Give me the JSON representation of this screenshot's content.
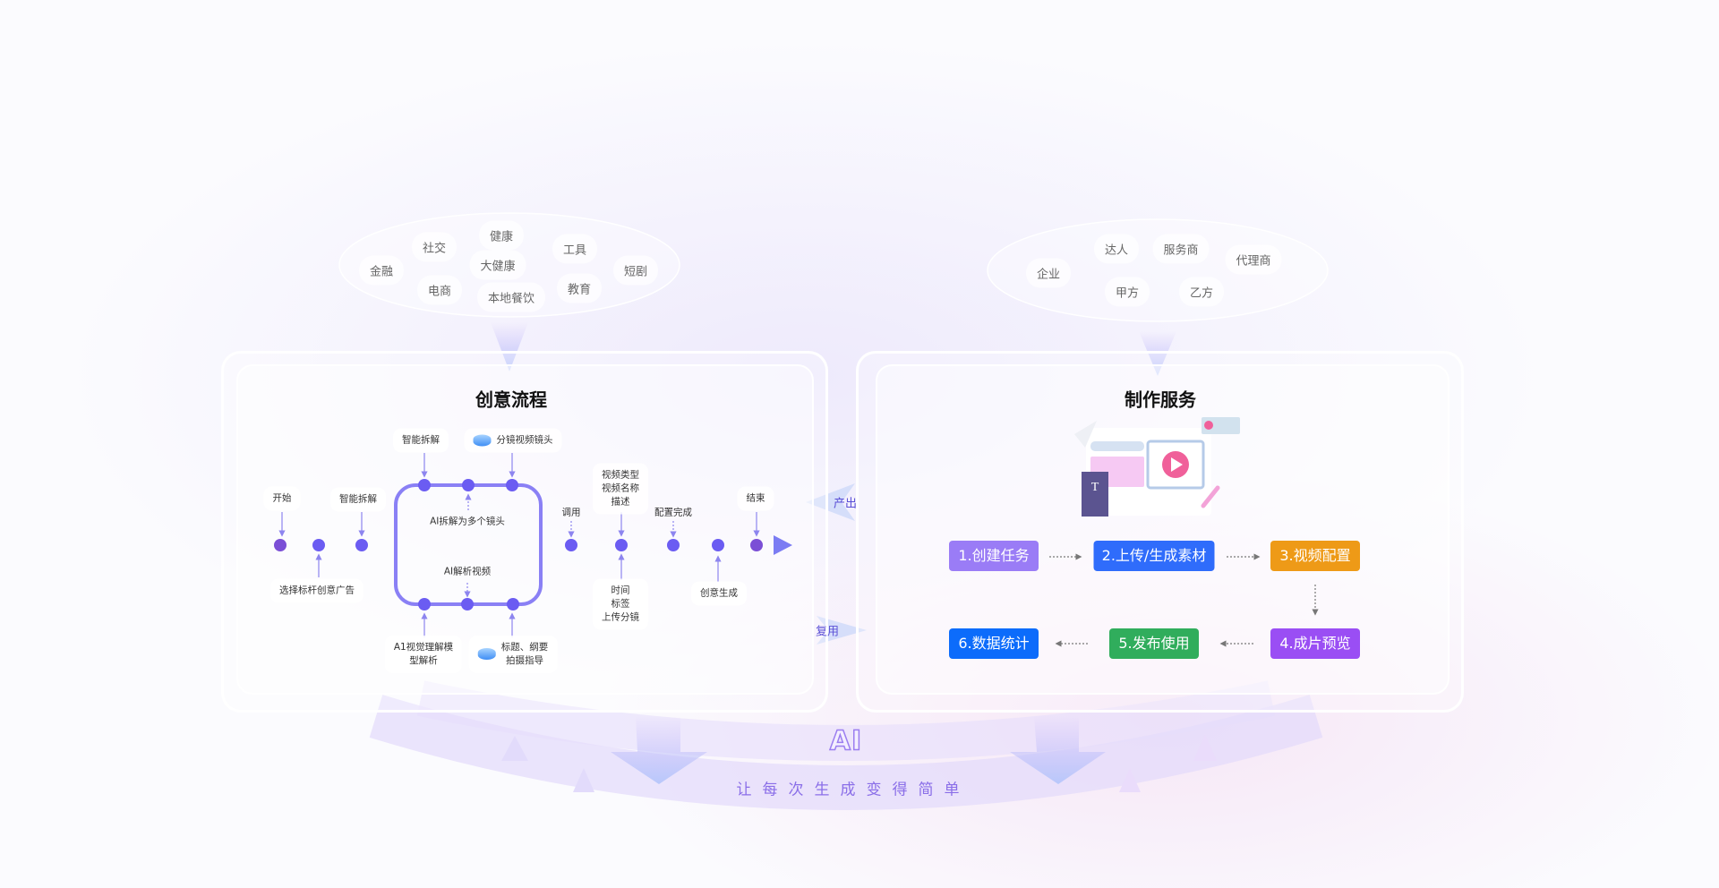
{
  "left_cloud": {
    "tags": [
      "健康",
      "社交",
      "工具",
      "金融",
      "大健康",
      "短剧",
      "电商",
      "本地餐饮",
      "教育"
    ]
  },
  "right_cloud": {
    "tags": [
      "达人",
      "服务商",
      "代理商",
      "企业",
      "甲方",
      "乙方"
    ]
  },
  "creative_flow": {
    "title": "创意流程",
    "start": "开始",
    "smart_split_1": "智能拆解",
    "smart_split_2": "智能拆解",
    "storyboard_shot": "分镜视频镜头",
    "ai_split_shots": "AI拆解为多个镜头",
    "ai_parse_video": "AI解析视频",
    "select_benchmark": "选择标杆创意广告",
    "ai_vision_model": [
      "A1视觉理解模",
      "型解析"
    ],
    "title_outline": [
      "标题、纲要",
      "拍摄指导"
    ],
    "invoke": "调用",
    "video_meta": [
      "视频类型",
      "视频名称",
      "描述"
    ],
    "config_done": "配置完成",
    "time_tags": [
      "时间",
      "标签",
      "上传分镜"
    ],
    "creative_gen": "创意生成",
    "end": "结束"
  },
  "connectors": {
    "output": "产出",
    "reuse": "复用"
  },
  "production_service": {
    "title": "制作服务",
    "steps": [
      {
        "label": "1.创建任务",
        "color": "#9a7cf6"
      },
      {
        "label": "2.上传/生成素材",
        "color": "#2f6cfb"
      },
      {
        "label": "3.视频配置",
        "color": "#ee9a17"
      },
      {
        "label": "4.成片预览",
        "color": "#9a4ef4"
      },
      {
        "label": "5.发布使用",
        "color": "#30ad5c"
      },
      {
        "label": "6.数据统计",
        "color": "#0c6cfb"
      }
    ]
  },
  "footer": {
    "ai": "AI",
    "slogan": "让每次生成变得简单"
  }
}
